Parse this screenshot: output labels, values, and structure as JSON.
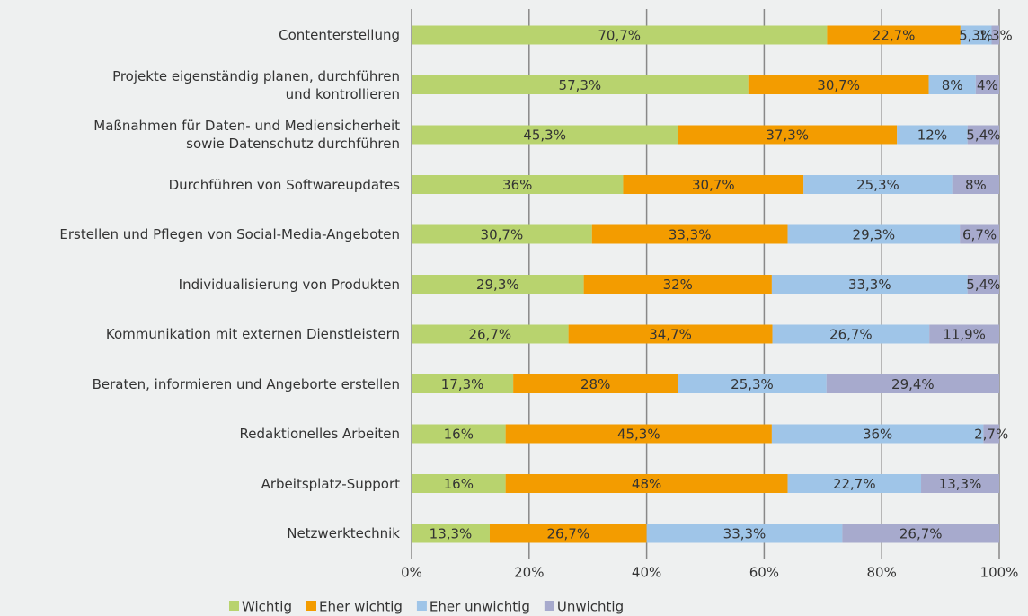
{
  "chart_data": {
    "type": "stacked-bar-horizontal",
    "categories": [
      "Contenterstellung",
      "Projekte eigenständig planen, durchführen\nund kontrollieren",
      "Maßnahmen für Daten- und Mediensicherheit\nsowie Datenschutz durchführen",
      "Durchführen von Softwareupdates",
      "Erstellen und Pflegen von Social-Media-Angeboten",
      "Individualisierung von Produkten",
      "Kommunikation mit externen Dienstleistern",
      "Beraten, informieren und Angeborte erstellen",
      "Redaktionelles Arbeiten",
      "Arbeitsplatz-Support",
      "Netzwerktechnik"
    ],
    "series": [
      {
        "name": "Wichtig",
        "color": "#b8d36e",
        "values": [
          70.7,
          57.3,
          45.3,
          36,
          30.7,
          29.3,
          26.7,
          17.3,
          16,
          16,
          13.3
        ],
        "value_labels": [
          "70,7%",
          "57,3%",
          "45,3%",
          "36%",
          "30,7%",
          "29,3%",
          "26,7%",
          "17,3%",
          "16%",
          "16%",
          "13,3%"
        ]
      },
      {
        "name": "Eher wichtig",
        "color": "#f39c00",
        "values": [
          22.7,
          30.7,
          37.3,
          30.7,
          33.3,
          32,
          34.7,
          28,
          45.3,
          48,
          26.7
        ],
        "value_labels": [
          "22,7%",
          "30,7%",
          "37,3%",
          "30,7%",
          "33,3%",
          "32%",
          "34,7%",
          "28%",
          "45,3%",
          "48%",
          "26,7%"
        ]
      },
      {
        "name": "Eher unwichtig",
        "color": "#9fc5e8",
        "values": [
          5.3,
          8,
          12,
          25.3,
          29.3,
          33.3,
          26.7,
          25.3,
          36,
          22.7,
          33.3
        ],
        "value_labels": [
          "5,3%",
          "8%",
          "12%",
          "25,3%",
          "29,3%",
          "33,3%",
          "26,7%",
          "25,3%",
          "36%",
          "22,7%",
          "33,3%"
        ]
      },
      {
        "name": "Unwichtig",
        "color": "#a7aacd",
        "values": [
          1.3,
          4,
          5.4,
          8,
          6.7,
          5.4,
          11.9,
          29.4,
          2.7,
          13.3,
          26.7
        ],
        "value_labels": [
          "1,3%",
          "4%",
          "5,4%",
          "8%",
          "6,7%",
          "5,4%",
          "11,9%",
          "29,4%",
          "2,7%",
          "13,3%",
          "26,7%"
        ]
      }
    ],
    "xlim": [
      0,
      100
    ],
    "xticks": [
      {
        "value": 0,
        "label": "0%"
      },
      {
        "value": 20,
        "label": "20%"
      },
      {
        "value": 40,
        "label": "40%"
      },
      {
        "value": 60,
        "label": "60%"
      },
      {
        "value": 80,
        "label": "80%"
      },
      {
        "value": 100,
        "label": "100%"
      }
    ],
    "grid": true
  }
}
